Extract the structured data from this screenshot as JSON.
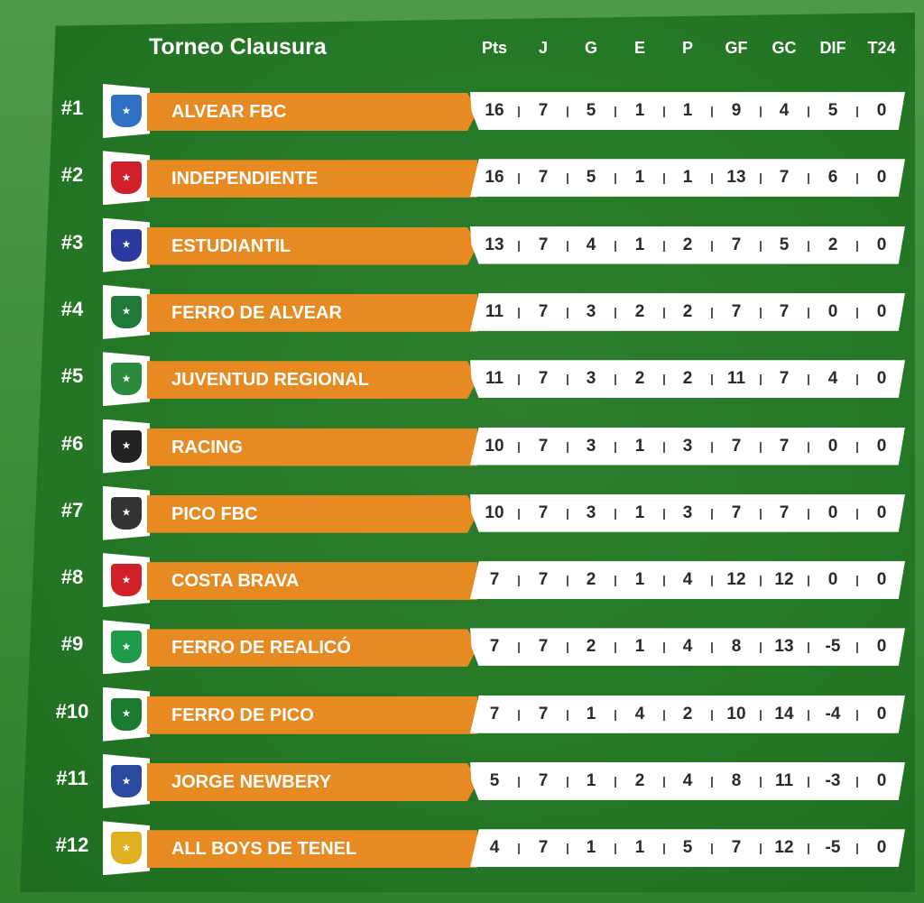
{
  "title": "Torneo Clausura",
  "columns": [
    "Pts",
    "J",
    "G",
    "E",
    "P",
    "GF",
    "GC",
    "DIF",
    "T24"
  ],
  "colors": {
    "orange": "#e88a22",
    "green": "#2d7f2e",
    "white": "#ffffff"
  },
  "teams": [
    {
      "rank": "#1",
      "name": "ALVEAR FBC",
      "crest": "#2f6fc4",
      "stats": [
        "16",
        "7",
        "5",
        "1",
        "1",
        "9",
        "4",
        "5",
        "0"
      ]
    },
    {
      "rank": "#2",
      "name": "INDEPENDIENTE",
      "crest": "#d2202a",
      "stats": [
        "16",
        "7",
        "5",
        "1",
        "1",
        "13",
        "7",
        "6",
        "0"
      ]
    },
    {
      "rank": "#3",
      "name": "ESTUDIANTIL",
      "crest": "#2a3aa0",
      "stats": [
        "13",
        "7",
        "4",
        "1",
        "2",
        "7",
        "5",
        "2",
        "0"
      ]
    },
    {
      "rank": "#4",
      "name": "FERRO DE ALVEAR",
      "crest": "#1f7a3a",
      "stats": [
        "11",
        "7",
        "3",
        "2",
        "2",
        "7",
        "7",
        "0",
        "0"
      ]
    },
    {
      "rank": "#5",
      "name": "JUVENTUD REGIONAL",
      "crest": "#2b8a3e",
      "stats": [
        "11",
        "7",
        "3",
        "2",
        "2",
        "11",
        "7",
        "4",
        "0"
      ]
    },
    {
      "rank": "#6",
      "name": "RACING",
      "crest": "#222222",
      "stats": [
        "10",
        "7",
        "3",
        "1",
        "3",
        "7",
        "7",
        "0",
        "0"
      ]
    },
    {
      "rank": "#7",
      "name": "PICO FBC",
      "crest": "#333333",
      "stats": [
        "10",
        "7",
        "3",
        "1",
        "3",
        "7",
        "7",
        "0",
        "0"
      ]
    },
    {
      "rank": "#8",
      "name": "COSTA BRAVA",
      "crest": "#d2202a",
      "stats": [
        "7",
        "7",
        "2",
        "1",
        "4",
        "12",
        "12",
        "0",
        "0"
      ]
    },
    {
      "rank": "#9",
      "name": "FERRO DE REALICÓ",
      "crest": "#1f9a4a",
      "stats": [
        "7",
        "7",
        "2",
        "1",
        "4",
        "8",
        "13",
        "-5",
        "0"
      ]
    },
    {
      "rank": "#10",
      "name": "FERRO DE PICO",
      "crest": "#1a7a30",
      "stats": [
        "7",
        "7",
        "1",
        "4",
        "2",
        "10",
        "14",
        "-4",
        "0"
      ]
    },
    {
      "rank": "#11",
      "name": "JORGE NEWBERY",
      "crest": "#2a4aa0",
      "stats": [
        "5",
        "7",
        "1",
        "2",
        "4",
        "8",
        "11",
        "-3",
        "0"
      ]
    },
    {
      "rank": "#12",
      "name": "ALL BOYS DE TENEL",
      "crest": "#e0b020",
      "stats": [
        "4",
        "7",
        "1",
        "1",
        "5",
        "7",
        "12",
        "-5",
        "0"
      ]
    }
  ]
}
